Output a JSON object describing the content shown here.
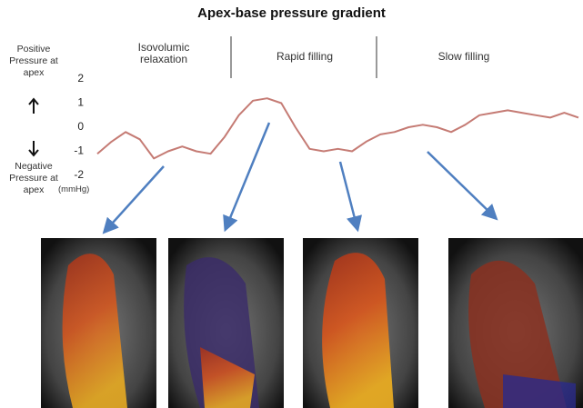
{
  "chart_data": {
    "type": "line",
    "title": "Apex-base pressure gradient",
    "y_label": "(mmHg)",
    "annotations": {
      "positive": "Positive Pressure at apex",
      "negative": "Negative Pressure at apex"
    },
    "phases": [
      "Isovolumic relaxation",
      "Rapid filling",
      "Slow filling"
    ],
    "values": [
      -1.1,
      -0.6,
      -0.2,
      -0.5,
      -1.3,
      -1.0,
      -0.8,
      -1.0,
      -1.1,
      -0.4,
      0.5,
      1.1,
      1.2,
      1.0,
      0.0,
      -0.9,
      -1.0,
      -0.9,
      -1.0,
      -0.6,
      -0.3,
      -0.2,
      0.0,
      0.1,
      0.0,
      -0.2,
      0.1,
      0.5,
      0.6,
      0.7,
      0.6,
      0.5,
      0.4,
      0.6,
      0.4
    ],
    "color": "#c57b74",
    "ylim": [
      -2,
      2
    ],
    "yticks": [
      -2,
      -1,
      0,
      1,
      2
    ],
    "grid": false
  }
}
